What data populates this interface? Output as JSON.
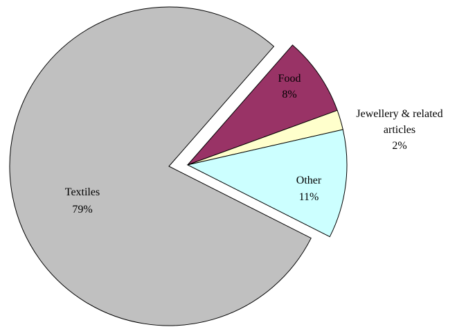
{
  "chart_data": {
    "type": "pie",
    "slices": [
      {
        "label": "Textiles",
        "label_lines": [
          "Textiles"
        ],
        "percent_text": "79%",
        "value": 79,
        "color": "#c0c0c0",
        "exploded": false
      },
      {
        "label": "Food",
        "label_lines": [
          "Food"
        ],
        "percent_text": "8%",
        "value": 8,
        "color": "#993366",
        "exploded": true
      },
      {
        "label": "Jewellery & related articles",
        "label_lines": [
          "Jewellery & related",
          "articles"
        ],
        "percent_text": "2%",
        "value": 2,
        "color": "#ffffcc",
        "exploded": true
      },
      {
        "label": "Other",
        "label_lines": [
          "Other"
        ],
        "percent_text": "11%",
        "value": 11,
        "color": "#ccffff",
        "exploded": true
      }
    ],
    "legend": "none",
    "label_position": "on-slice"
  }
}
